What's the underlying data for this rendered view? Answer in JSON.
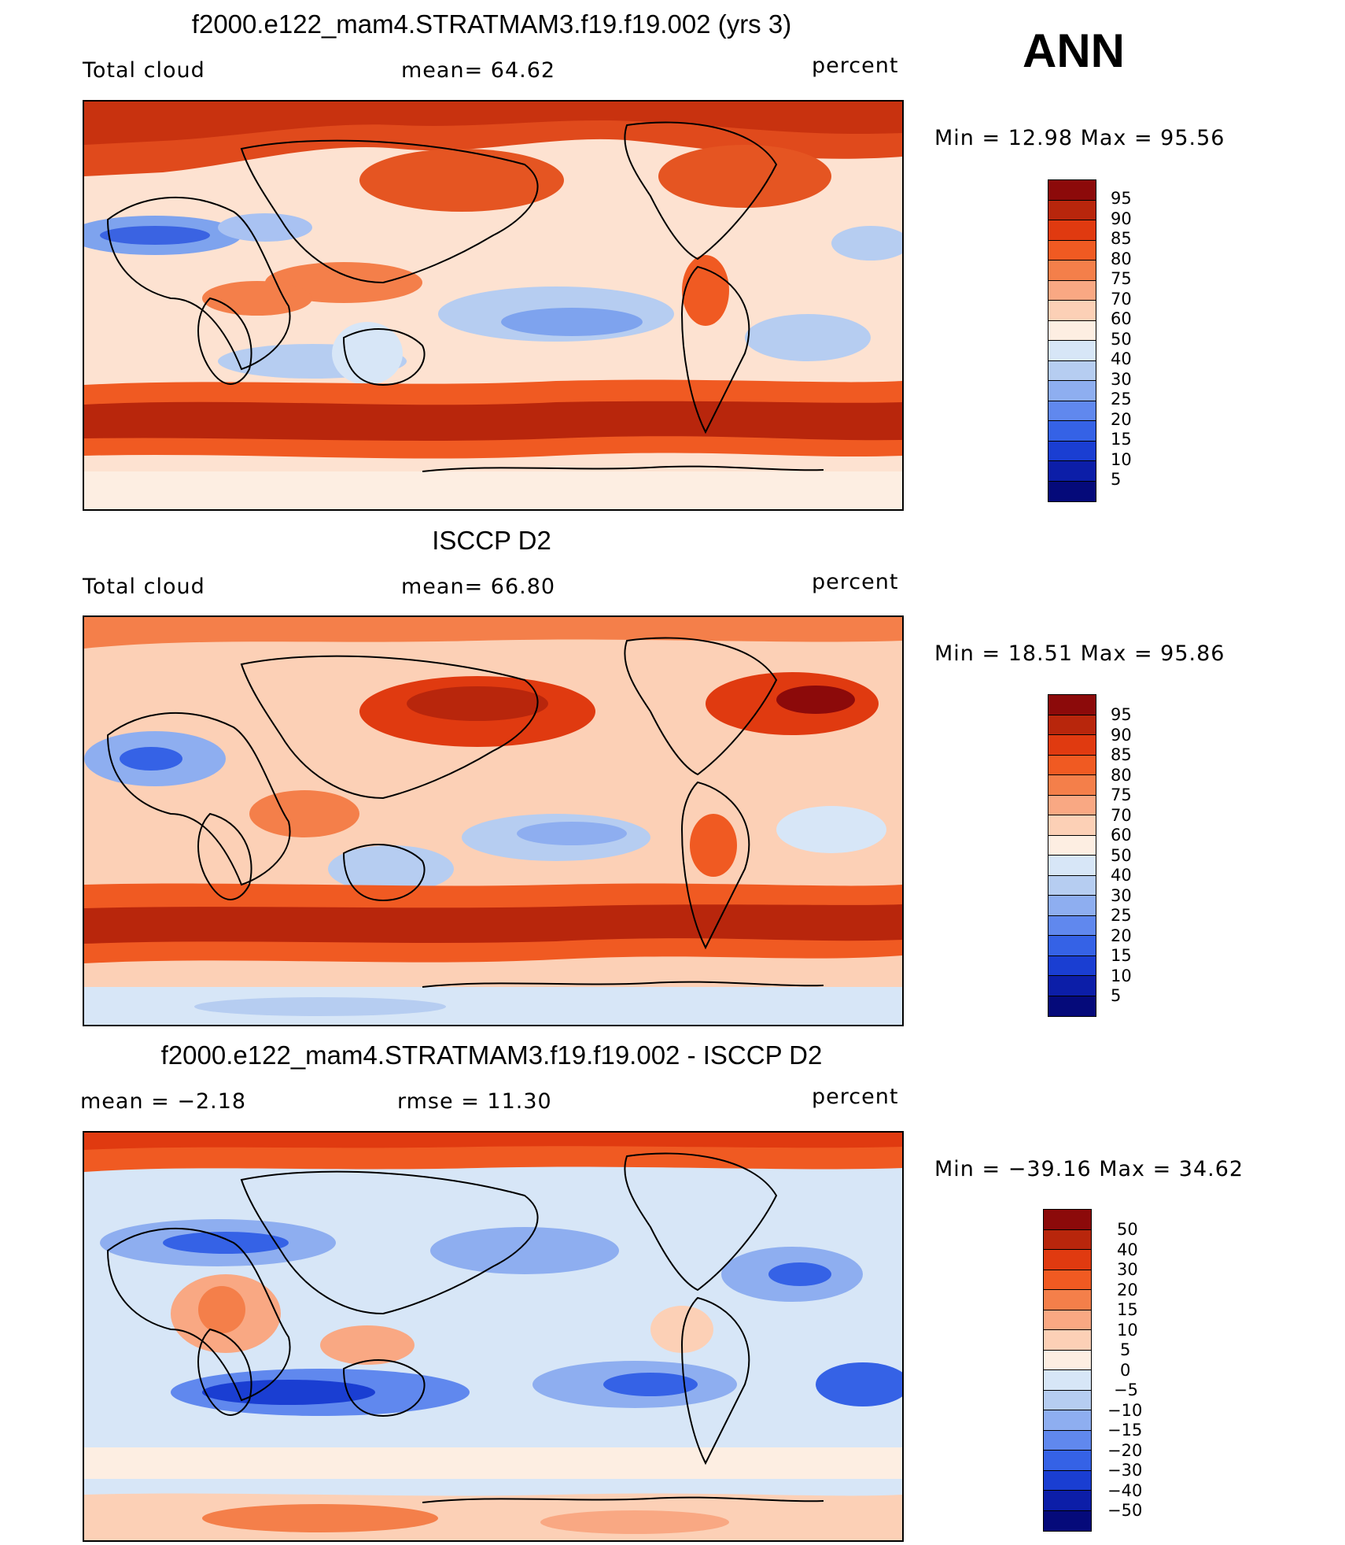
{
  "header": {
    "season": "ANN"
  },
  "panels": [
    {
      "title": "f2000.e122_mam4.STRATMAM3.f19.f19.002 (yrs 3)",
      "left_label": "Total cloud",
      "center_label": "mean=   64.62",
      "right_label": "percent",
      "minmax": "Min =   12.98 Max =   95.56",
      "colorbar": {
        "labels": [
          "95",
          "90",
          "85",
          "80",
          "75",
          "70",
          "60",
          "50",
          "40",
          "30",
          "25",
          "20",
          "15",
          "10",
          "5"
        ],
        "colors": [
          "#8c0a0a",
          "#b8260c",
          "#e03a10",
          "#f05a22",
          "#f47f4a",
          "#f9a883",
          "#fcd0b6",
          "#fdeee2",
          "#d7e6f7",
          "#b6cdf1",
          "#8eaef0",
          "#6088ee",
          "#3562e6",
          "#1a3ed2",
          "#0c1ea8",
          "#050a7a"
        ]
      }
    },
    {
      "title": "ISCCP D2",
      "left_label": "Total cloud",
      "center_label": "mean=   66.80",
      "right_label": "percent",
      "minmax": "Min =   18.51 Max =   95.86",
      "colorbar": {
        "labels": [
          "95",
          "90",
          "85",
          "80",
          "75",
          "70",
          "60",
          "50",
          "40",
          "30",
          "25",
          "20",
          "15",
          "10",
          "5"
        ],
        "colors": [
          "#8c0a0a",
          "#b8260c",
          "#e03a10",
          "#f05a22",
          "#f47f4a",
          "#f9a883",
          "#fcd0b6",
          "#fdeee2",
          "#d7e6f7",
          "#b6cdf1",
          "#8eaef0",
          "#6088ee",
          "#3562e6",
          "#1a3ed2",
          "#0c1ea8",
          "#050a7a"
        ]
      }
    },
    {
      "title": "f2000.e122_mam4.STRATMAM3.f19.f19.002 - ISCCP D2",
      "left_label": "mean =   −2.18",
      "center_label": "rmse =   11.30",
      "right_label": "percent",
      "minmax": "Min = −39.16 Max =   34.62",
      "colorbar": {
        "labels": [
          "50",
          "40",
          "30",
          "20",
          "15",
          "10",
          "5",
          "0",
          "−5",
          "−10",
          "−15",
          "−20",
          "−30",
          "−40",
          "−50"
        ],
        "colors": [
          "#8c0a0a",
          "#b8260c",
          "#e03a10",
          "#f05a22",
          "#f47f4a",
          "#f9a883",
          "#fcd0b6",
          "#fdeee2",
          "#d7e6f7",
          "#b6cdf1",
          "#8eaef0",
          "#6088ee",
          "#3562e6",
          "#1a3ed2",
          "#0c1ea8",
          "#050a7a"
        ]
      }
    }
  ]
}
